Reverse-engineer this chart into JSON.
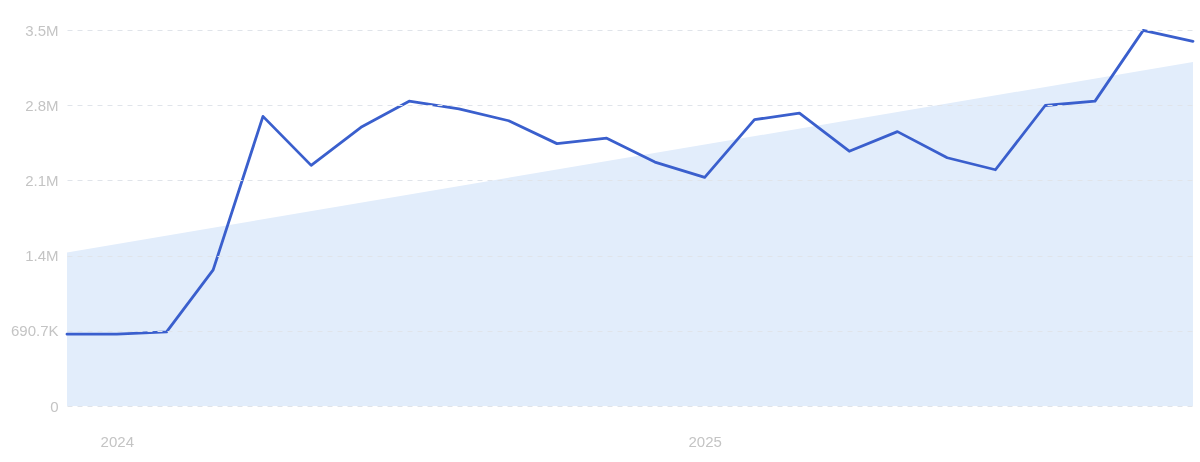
{
  "chart_data": {
    "type": "line",
    "x": [
      "2023-12",
      "2024-01",
      "2024-02",
      "2024-03",
      "2024-04",
      "2024-05",
      "2024-06",
      "2024-07",
      "2024-08",
      "2024-09",
      "2024-10",
      "2024-11",
      "2024-12",
      "2025-01",
      "2025-02",
      "2025-03",
      "2025-04",
      "2025-05",
      "2025-06",
      "2025-07",
      "2025-08",
      "2025-09",
      "2025-10",
      "2025-11"
    ],
    "series": [
      {
        "type": "area",
        "color": "#e2edfb",
        "x": [
          "2023-12",
          "2025-11"
        ],
        "values": [
          1410000,
          3160000
        ]
      },
      {
        "color": "#3a5fcd",
        "values": [
          660000,
          660000,
          680000,
          1250000,
          2660000,
          2210000,
          2560000,
          2800000,
          2730000,
          2620000,
          2410000,
          2460000,
          2240000,
          2100000,
          2630000,
          2690000,
          2340000,
          2520000,
          2280000,
          2170000,
          2760000,
          2800000,
          3450000,
          3350000
        ]
      }
    ],
    "xlim": [
      "2023-12",
      "2025-11"
    ],
    "xticks": [
      "2024",
      "2025"
    ],
    "ylim": [
      0,
      3453500
    ],
    "yticks": [
      0,
      {
        "value": 690700,
        "label": "690.7K"
      },
      {
        "value": 1381400,
        "label": "1.4M"
      },
      {
        "value": 2072100,
        "label": "2.1M"
      },
      {
        "value": 2762800,
        "label": "2.8M"
      },
      {
        "value": 3453500,
        "label": "3.5M"
      }
    ],
    "grid": "y"
  }
}
